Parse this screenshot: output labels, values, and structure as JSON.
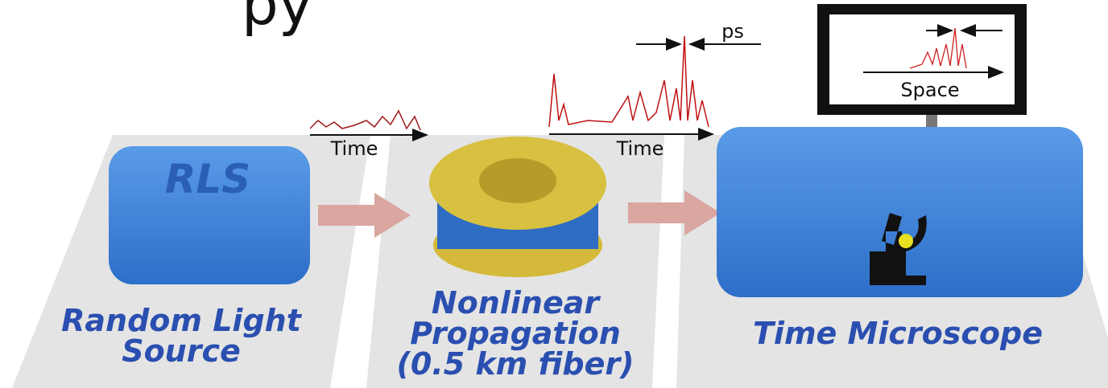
{
  "title_fragment": "py",
  "blocks": [
    {
      "name": "RLS",
      "label": [
        "Random Light",
        "Source"
      ]
    },
    {
      "label": [
        "Nonlinear",
        "Propagation",
        "(0.5 km fiber)"
      ]
    },
    {
      "label": [
        "Time Microscope"
      ]
    }
  ],
  "signals": [
    {
      "axis": "Time"
    },
    {
      "axis": "Time",
      "width_label": "ps"
    },
    {
      "axis": "Space"
    }
  ]
}
